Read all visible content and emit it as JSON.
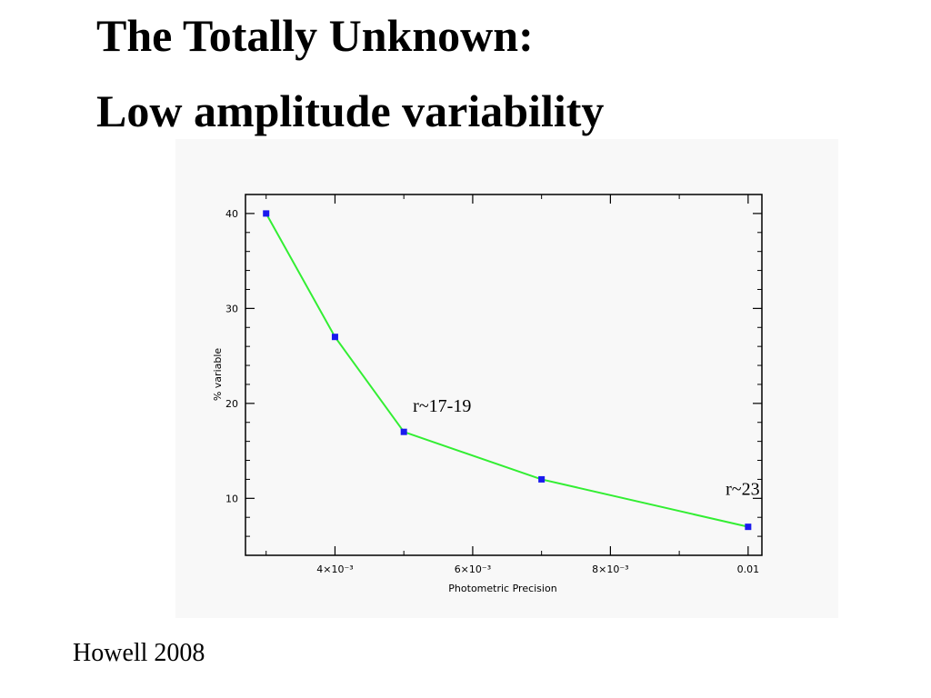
{
  "slide": {
    "title_line1": "The Totally Unknown:",
    "title_line2": "Low amplitude variability",
    "credit": "Howell 2008"
  },
  "chart_data": {
    "type": "line",
    "x": [
      0.003,
      0.004,
      0.005,
      0.007,
      0.01
    ],
    "y": [
      40,
      27,
      17,
      12,
      7
    ],
    "xlabel": "Photometric Precision",
    "ylabel": "% variable",
    "xlim": [
      0.0027,
      0.0102
    ],
    "ylim": [
      4,
      42
    ],
    "y_ticks": [
      10,
      20,
      30,
      40
    ],
    "x_tick_labels": [
      {
        "value": 0.004,
        "label": "4×10⁻³"
      },
      {
        "value": 0.006,
        "label": "6×10⁻³"
      },
      {
        "value": 0.008,
        "label": "8×10⁻³"
      },
      {
        "value": 0.01,
        "label": "0.01"
      }
    ],
    "annotations": [
      {
        "text": "r~17-19",
        "x": 0.005,
        "y": 17
      },
      {
        "text": "r~23",
        "x": 0.01,
        "y": 7
      }
    ],
    "line_color": "#33ee33",
    "marker_color": "#1a1aee",
    "grid": false
  }
}
